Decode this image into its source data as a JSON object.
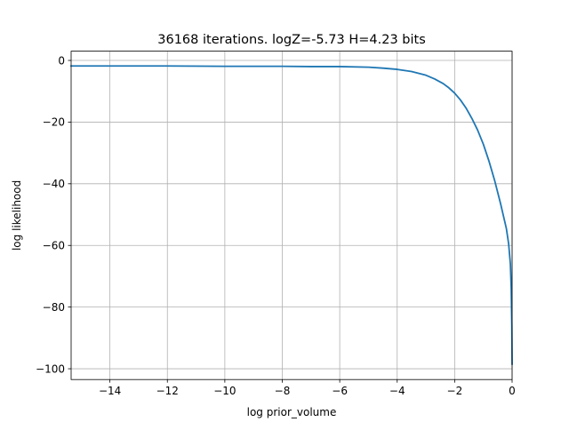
{
  "chart_data": {
    "type": "line",
    "title": "36168 iterations. logZ=-5.73 H=4.23 bits",
    "xlabel": "log prior_volume",
    "ylabel": "log likelihood",
    "xlim": [
      -15.35,
      0.0
    ],
    "ylim": [
      -103.5,
      3.0
    ],
    "grid": true,
    "xticks": [
      -14,
      -12,
      -10,
      -8,
      -6,
      -4,
      -2,
      0
    ],
    "xtick_labels": [
      "−14",
      "−12",
      "−10",
      "−8",
      "−6",
      "−4",
      "−2",
      "0"
    ],
    "yticks": [
      0,
      -20,
      -40,
      -60,
      -80,
      -100
    ],
    "ytick_labels": [
      "0",
      "−20",
      "−40",
      "−60",
      "−80",
      "−100"
    ],
    "colors": {
      "line": "#1f77b4",
      "grid": "#b0b0b0"
    },
    "series": [
      {
        "x": [
          -15.35,
          -14,
          -12,
          -10,
          -8,
          -7,
          -6,
          -5,
          -4.5,
          -4,
          -3.5,
          -3,
          -2.7,
          -2.4,
          -2.2,
          -2.0,
          -1.8,
          -1.6,
          -1.4,
          -1.2,
          -1.0,
          -0.8,
          -0.6,
          -0.4,
          -0.3,
          -0.2,
          -0.12,
          -0.06,
          -0.03,
          -0.01,
          0.0
        ],
        "y": [
          -1.8,
          -1.8,
          -1.8,
          -1.9,
          -1.9,
          -2.0,
          -2.0,
          -2.2,
          -2.5,
          -2.9,
          -3.6,
          -4.8,
          -6.0,
          -7.5,
          -8.9,
          -10.6,
          -12.8,
          -15.5,
          -18.8,
          -22.6,
          -27.2,
          -32.8,
          -39.2,
          -46.5,
          -50.5,
          -54.5,
          -59.5,
          -66.0,
          -74.0,
          -86.0,
          -98.5
        ]
      }
    ]
  }
}
